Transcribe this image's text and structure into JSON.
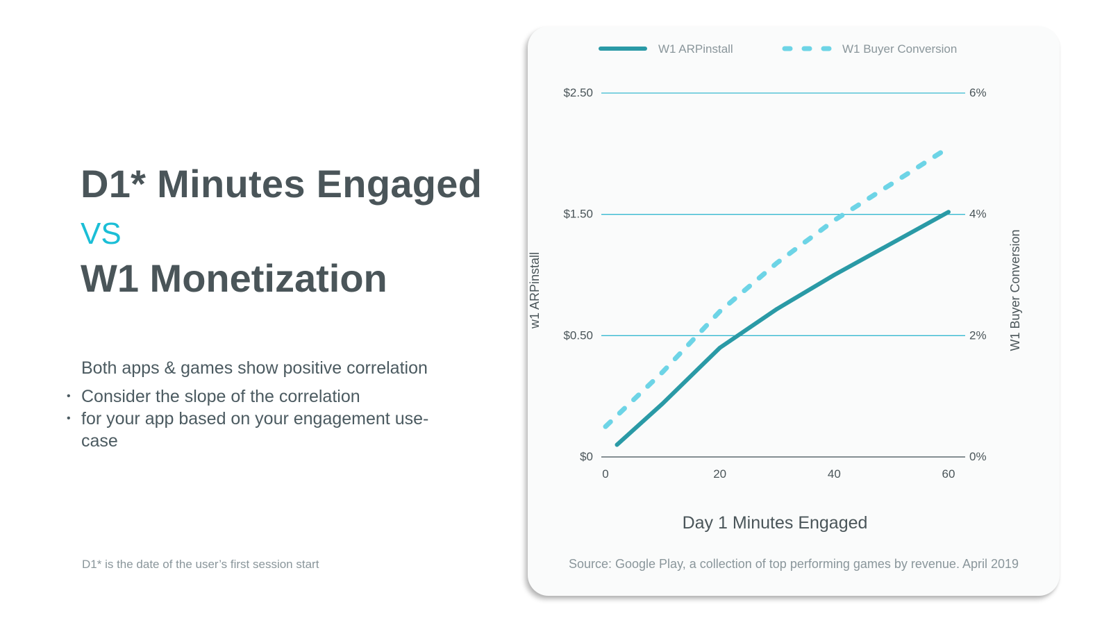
{
  "slide": {
    "title_line1": "D1* Minutes Engaged",
    "vs": "VS",
    "title_line2": "W1 Monetization",
    "intro": "Both apps & games show positive correlation",
    "bullets": [
      "Consider the slope of the correlation",
      "for your app based on your engagement use-case"
    ],
    "bullet_glyph": "•",
    "footnote": "D1* is the date of the user’s first session start",
    "source": "Source: Google Play, a collection of top performing games by revenue. April 2019"
  },
  "colors": {
    "title": "#4a5559",
    "accent": "#1bbed6",
    "arpinstall_line": "#2a9aa6",
    "conversion_line": "#6dd4e6",
    "gridline": "#36b9d0",
    "baseline": "#5d6b70"
  },
  "chart_data": {
    "type": "line",
    "xlabel": "Day 1 Minutes Engaged",
    "ylabel_left": "w1 ARPinstall",
    "ylabel_right": "W1 Buyer Conversion",
    "xlim": [
      0,
      60
    ],
    "x_ticks": [
      0,
      20,
      40,
      60
    ],
    "x_tick_labels": [
      "0",
      "20",
      "40",
      "60"
    ],
    "ylim_left": [
      0,
      2.5
    ],
    "y_left_ticks": [
      0,
      0.5,
      1.5,
      2.5
    ],
    "y_left_tick_labels": [
      "$0",
      "$0.50",
      "$1.50",
      "$2.50"
    ],
    "ylim_right": [
      0,
      6
    ],
    "y_right_ticks": [
      0,
      2,
      4,
      6
    ],
    "y_right_tick_labels": [
      "0%",
      "2%",
      "4%",
      "6%"
    ],
    "y_axis_note": "left axis is piecewise: $0–$0.50, $0.50–$1.50 and $1.50–$2.50 are equally spaced",
    "grid": true,
    "legend_position": "top",
    "series": [
      {
        "name": "W1 ARPinstall",
        "axis": "left",
        "style": "solid",
        "x": [
          2,
          10,
          20,
          30,
          40,
          50,
          60
        ],
        "y": [
          0.05,
          0.22,
          0.45,
          0.72,
          1.0,
          1.26,
          1.52
        ]
      },
      {
        "name": "W1 Buyer Conversion",
        "axis": "right",
        "style": "dashed",
        "x": [
          0,
          10,
          20,
          30,
          40,
          50,
          60
        ],
        "y": [
          0.5,
          1.4,
          2.4,
          3.2,
          3.9,
          4.5,
          5.1
        ]
      }
    ]
  }
}
